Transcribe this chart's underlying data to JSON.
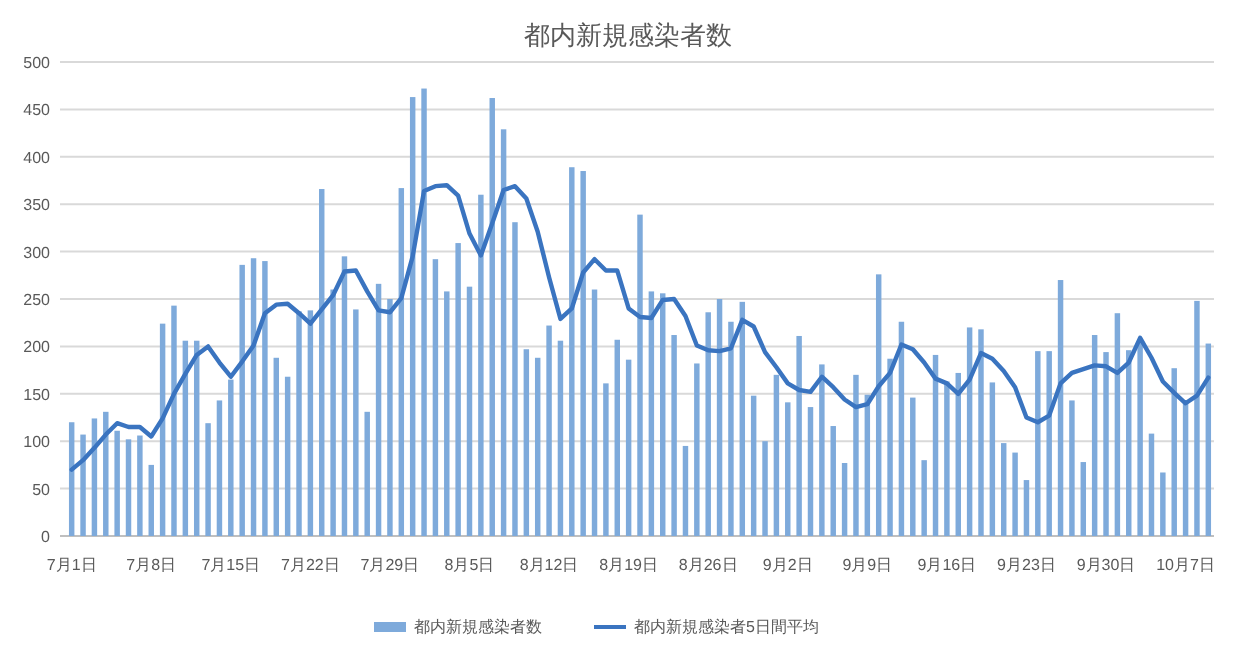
{
  "chart_data": {
    "type": "bar",
    "title": "都内新規感染者数",
    "categories": [
      "7月1日",
      null,
      null,
      null,
      null,
      null,
      null,
      "7月8日",
      null,
      null,
      null,
      null,
      null,
      null,
      "7月15日",
      null,
      null,
      null,
      null,
      null,
      null,
      "7月22日",
      null,
      null,
      null,
      null,
      null,
      null,
      "7月29日",
      null,
      null,
      null,
      null,
      null,
      null,
      "8月5日",
      null,
      null,
      null,
      null,
      null,
      null,
      "8月12日",
      null,
      null,
      null,
      null,
      null,
      null,
      "8月19日",
      null,
      null,
      null,
      null,
      null,
      null,
      "8月26日",
      null,
      null,
      null,
      null,
      null,
      null,
      "9月2日",
      null,
      null,
      null,
      null,
      null,
      null,
      "9月9日",
      null,
      null,
      null,
      null,
      null,
      null,
      "9月16日",
      null,
      null,
      null,
      null,
      null,
      null,
      "9月23日",
      null,
      null,
      null,
      null,
      null,
      null,
      "9月30日",
      null,
      null,
      null,
      null,
      null,
      null,
      "10月7日",
      null,
      null
    ],
    "series": [
      {
        "name": "都内新規感染者数",
        "color": "#7eaadb",
        "values": [
          120,
          107,
          124,
          131,
          111,
          102,
          106,
          75,
          224,
          243,
          206,
          206,
          119,
          143,
          165,
          286,
          293,
          290,
          188,
          168,
          237,
          238,
          366,
          260,
          295,
          239,
          131,
          266,
          250,
          367,
          463,
          472,
          292,
          258,
          309,
          263,
          360,
          462,
          429,
          331,
          197,
          188,
          222,
          206,
          389,
          385,
          260,
          161,
          207,
          186,
          339,
          258,
          256,
          212,
          95,
          182,
          236,
          250,
          226,
          247,
          148,
          100,
          170,
          141,
          211,
          136,
          181,
          116,
          77,
          170,
          149,
          276,
          187,
          226,
          146,
          80,
          191,
          163,
          172,
          220,
          218,
          162,
          98,
          88,
          59,
          195,
          195,
          270,
          143,
          78,
          212,
          194,
          235,
          196,
          207,
          108,
          67,
          177,
          142,
          248,
          203
        ]
      },
      {
        "name": "都内新規感染者5日間平均",
        "type": "line",
        "color": "#3a74c0",
        "values": [
          70,
          80,
          93,
          107,
          119,
          115,
          115,
          105,
          124,
          150,
          171,
          191,
          200,
          183,
          168,
          184,
          201,
          235,
          244,
          245,
          235,
          224,
          239,
          254,
          279,
          280,
          258,
          238,
          236,
          251,
          295,
          364,
          369,
          370,
          359,
          319,
          296,
          330,
          365,
          369,
          356,
          321,
          273,
          229,
          240,
          278,
          292,
          280,
          280,
          240,
          231,
          230,
          249,
          250,
          232,
          201,
          196,
          195,
          198,
          228,
          221,
          194,
          178,
          161,
          154,
          152,
          168,
          157,
          144,
          136,
          139,
          158,
          172,
          202,
          197,
          183,
          166,
          161,
          150,
          165,
          193,
          187,
          174,
          157,
          125,
          120,
          127,
          161,
          172,
          176,
          180,
          179,
          172,
          183,
          209,
          188,
          163,
          151,
          140,
          148,
          167
        ]
      }
    ],
    "ylim": [
      0,
      500
    ],
    "yticks": [
      0,
      50,
      100,
      150,
      200,
      250,
      300,
      350,
      400,
      450,
      500
    ],
    "grid": "y",
    "legend": "bottom",
    "marker": "none",
    "line_style": "solid"
  }
}
